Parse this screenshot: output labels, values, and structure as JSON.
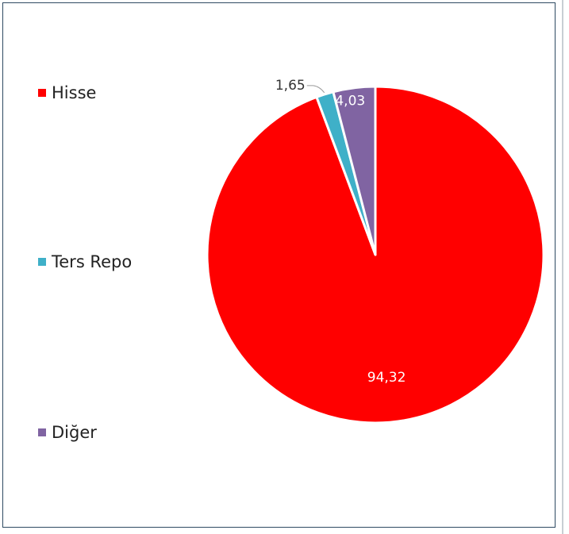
{
  "chart_data": {
    "type": "pie",
    "title": "",
    "legend_position": "left",
    "categories": [
      "Hisse",
      "Ters Repo",
      "Diğer"
    ],
    "values": [
      94.32,
      1.65,
      4.03
    ],
    "value_labels": [
      "94,32",
      "1,65",
      "4,03"
    ],
    "colors": [
      "#ff0000",
      "#3fb0c8",
      "#8064a2"
    ],
    "start_angle_deg": 0,
    "direction": "clockwise"
  }
}
